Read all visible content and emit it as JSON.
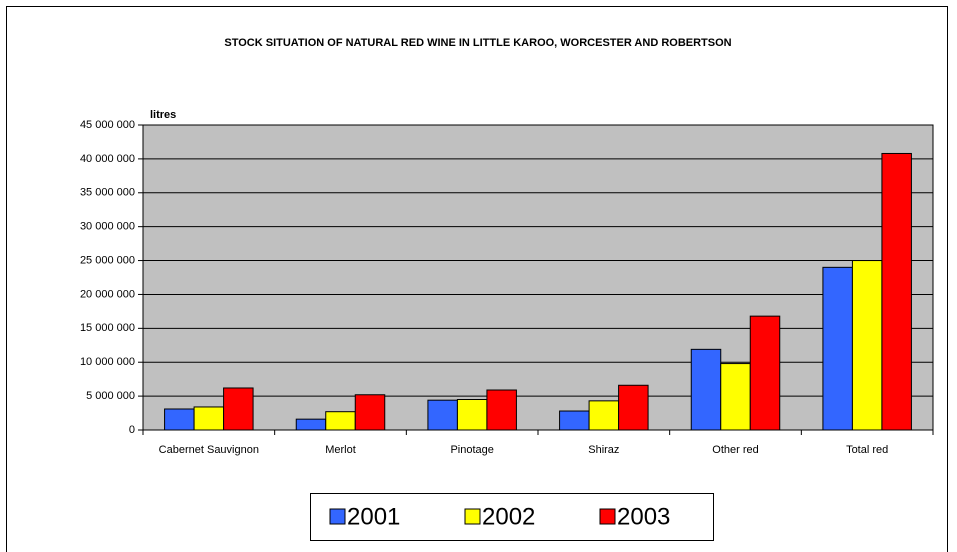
{
  "chart_data": {
    "type": "bar",
    "title": "STOCK SITUATION OF NATURAL RED WINE IN LITTLE KAROO, WORCESTER AND ROBERTSON",
    "y_label": "litres",
    "categories": [
      "Cabernet Sauvignon",
      "Merlot",
      "Pinotage",
      "Shiraz",
      "Other red",
      "Total red"
    ],
    "series": [
      {
        "name": "2001",
        "color": "#3366ff",
        "values": [
          3100000,
          1600000,
          4400000,
          2800000,
          11900000,
          24000000
        ]
      },
      {
        "name": "2002",
        "color": "#ffff00",
        "values": [
          3400000,
          2700000,
          4500000,
          4300000,
          9800000,
          25000000
        ]
      },
      {
        "name": "2003",
        "color": "#ff0000",
        "values": [
          6200000,
          5200000,
          5900000,
          6600000,
          16800000,
          40800000
        ]
      }
    ],
    "ylim": [
      0,
      45000000
    ],
    "yticks": [
      {
        "value": 0,
        "label": "0"
      },
      {
        "value": 5000000,
        "label": "5 000 000"
      },
      {
        "value": 10000000,
        "label": "10 000 000"
      },
      {
        "value": 15000000,
        "label": "15 000 000"
      },
      {
        "value": 20000000,
        "label": "20 000 000"
      },
      {
        "value": 25000000,
        "label": "25 000 000"
      },
      {
        "value": 30000000,
        "label": "30 000 000"
      },
      {
        "value": 35000000,
        "label": "35 000 000"
      },
      {
        "value": 40000000,
        "label": "40 000 000"
      },
      {
        "value": 45000000,
        "label": "45 000 000"
      }
    ],
    "grid": true,
    "plot_background": "#c0c0c0"
  }
}
